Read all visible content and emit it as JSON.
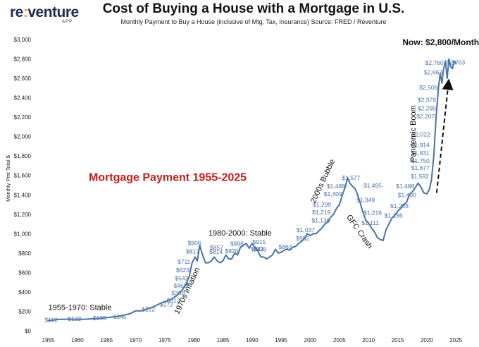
{
  "logo": {
    "main_a": "re",
    "main_accent": ":",
    "main_b": "venture",
    "sub": "APP"
  },
  "header": {
    "title": "Cost of Buying a House with a Mortgage in U.S.",
    "subtitle": "Monthly Payment to Buy a House (inclusive of Mtg, Tax, Insurance) Source: FRED / Reventure"
  },
  "chart_data": {
    "type": "line",
    "title": "Cost of Buying a House with a Mortgage in U.S.",
    "subtitle": "Monthly Payment to Buy a House (inclusive of Mtg, Tax, Insurance) Source: FRED / Reventure",
    "xlabel": "",
    "ylabel": "Monthly Pmt Total $",
    "xlim": [
      1953,
      2028
    ],
    "ylim": [
      0,
      3000
    ],
    "x_ticks": [
      "1955",
      "1960",
      "1965",
      "1970",
      "1975",
      "1980",
      "1985",
      "1990",
      "1995",
      "2000",
      "2005",
      "2010",
      "2015",
      "2020",
      "2025"
    ],
    "y_ticks": [
      "$0",
      "$200",
      "$400",
      "$600",
      "$800",
      "$1,000",
      "$1,200",
      "$1,400",
      "$1,600",
      "$1,800",
      "$2,000",
      "$2,200",
      "$2,400",
      "$2,600",
      "$2,800",
      "$3,000"
    ],
    "grid": false,
    "legend": "none",
    "line_color": "#4a72a8",
    "label_color": "#4a72a8",
    "series": [
      {
        "x": [
          1955,
          1957,
          1959,
          1961,
          1963,
          1965,
          1967,
          1969,
          1970,
          1971,
          1972,
          1973,
          1974,
          1975,
          1976,
          1977,
          1978,
          1978.6,
          1979.2,
          1979.7,
          1980.2,
          1980.6,
          1981,
          1981.5,
          1982,
          1982.5,
          1983,
          1983.5,
          1984,
          1984.5,
          1985,
          1985.5,
          1986,
          1986.5,
          1987,
          1987.5,
          1988,
          1988.5,
          1989,
          1989.5,
          1990,
          1990.5,
          1991,
          1991.5,
          1992,
          1992.5,
          1993,
          1993.5,
          1994,
          1994.5,
          1995,
          1995.5,
          1996,
          1996.5,
          1997,
          1997.5,
          1998,
          1998.5,
          1999,
          1999.5,
          2000,
          2000.5,
          2001,
          2001.5,
          2002,
          2002.5,
          2003,
          2003.5,
          2004,
          2004.5,
          2005,
          2005.5,
          2006,
          2006.4,
          2006.8,
          2007.2,
          2007.6,
          2008,
          2008.5,
          2009,
          2009.5,
          2010,
          2010.5,
          2011,
          2011.5,
          2012,
          2012.5,
          2013,
          2013.5,
          2014,
          2014.5,
          2015,
          2015.5,
          2016,
          2016.5,
          2017,
          2017.5,
          2018,
          2018.5,
          2019,
          2019.5,
          2020,
          2020.4,
          2020.8,
          2021.2,
          2021.6,
          2022,
          2022.3,
          2022.6,
          2022.9,
          2023.2,
          2023.5,
          2023.8,
          2024.1,
          2024.4,
          2024.7,
          2025
        ],
        "y": [
          105,
          118,
          120,
          118,
          125,
          135,
          148,
          175,
          205,
          205,
          225,
          245,
          275,
          300,
          320,
          360,
          420,
          470,
          560,
          700,
          760,
          720,
          880,
          780,
          700,
          700,
          720,
          760,
          720,
          700,
          720,
          780,
          740,
          740,
          800,
          780,
          860,
          880,
          900,
          850,
          900,
          860,
          820,
          760,
          760,
          740,
          760,
          780,
          840,
          800,
          810,
          830,
          840,
          830,
          860,
          870,
          900,
          920,
          950,
          1000,
          980,
          1000,
          1000,
          1030,
          1060,
          1100,
          1120,
          1170,
          1200,
          1260,
          1300,
          1400,
          1480,
          1577,
          1520,
          1490,
          1470,
          1420,
          1330,
          1230,
          1140,
          1110,
          1060,
          1020,
          960,
          940,
          930,
          1040,
          1100,
          1160,
          1190,
          1230,
          1260,
          1300,
          1320,
          1400,
          1430,
          1470,
          1520,
          1480,
          1420,
          1410,
          1450,
          1550,
          1800,
          2200,
          2500,
          2650,
          2550,
          2700,
          2780,
          2600,
          2800,
          2720,
          2700,
          2780,
          2750
        ]
      }
    ],
    "point_labels": [
      {
        "x": 1955.5,
        "y": 112,
        "text": "$112"
      },
      {
        "x": 1959.5,
        "y": 123,
        "text": "$123"
      },
      {
        "x": 1963.8,
        "y": 130,
        "text": "$130"
      },
      {
        "x": 1967.3,
        "y": 145,
        "text": "$145"
      },
      {
        "x": 1972.2,
        "y": 222,
        "text": "$222"
      },
      {
        "x": 1975.3,
        "y": 272,
        "text": "$272"
      },
      {
        "x": 1976.5,
        "y": 313,
        "text": "$313"
      },
      {
        "x": 1977.3,
        "y": 388,
        "text": "$388"
      },
      {
        "x": 1977.7,
        "y": 465,
        "text": "$465"
      },
      {
        "x": 1977.9,
        "y": 542,
        "text": "$542"
      },
      {
        "x": 1978.1,
        "y": 623,
        "text": "$623"
      },
      {
        "x": 1978.3,
        "y": 711,
        "text": "$711"
      },
      {
        "x": 1979.8,
        "y": 817,
        "text": "$817"
      },
      {
        "x": 1980.1,
        "y": 906,
        "text": "$906"
      },
      {
        "x": 1983.9,
        "y": 857,
        "text": "$857"
      },
      {
        "x": 1983.8,
        "y": 814,
        "text": "$814"
      },
      {
        "x": 1987.4,
        "y": 898,
        "text": "$898"
      },
      {
        "x": 1986.5,
        "y": 820,
        "text": "$820"
      },
      {
        "x": 1991.2,
        "y": 915,
        "text": "$915"
      },
      {
        "x": 1990.9,
        "y": 841,
        "text": "$841"
      },
      {
        "x": 1991.3,
        "y": 838,
        "text": "$838"
      },
      {
        "x": 1995.7,
        "y": 863,
        "text": "$863"
      },
      {
        "x": 1998.7,
        "y": 952,
        "text": "$952"
      },
      {
        "x": 1999.2,
        "y": 1037,
        "text": "$1,037"
      },
      {
        "x": 2001.8,
        "y": 1136,
        "text": "$1,136"
      },
      {
        "x": 2001.9,
        "y": 1219,
        "text": "$1,219"
      },
      {
        "x": 2002.0,
        "y": 1299,
        "text": "$1,299"
      },
      {
        "x": 2003.9,
        "y": 1409,
        "text": "$1,409"
      },
      {
        "x": 2004.4,
        "y": 1488,
        "text": "$1,488"
      },
      {
        "x": 2007.0,
        "y": 1577,
        "text": "$1,577"
      },
      {
        "x": 2010.7,
        "y": 1495,
        "text": "$1,495"
      },
      {
        "x": 2009.5,
        "y": 1349,
        "text": "$1,349"
      },
      {
        "x": 2010.7,
        "y": 1216,
        "text": "$1,216"
      },
      {
        "x": 2010.3,
        "y": 1111,
        "text": "$1,111"
      },
      {
        "x": 2014.3,
        "y": 1186,
        "text": "$1,186"
      },
      {
        "x": 2015.3,
        "y": 1286,
        "text": "$1,286"
      },
      {
        "x": 2016.6,
        "y": 1400,
        "text": "$1,400"
      },
      {
        "x": 2016.3,
        "y": 1488,
        "text": "$1,488"
      },
      {
        "x": 2018.8,
        "y": 1592,
        "text": "$1,592"
      },
      {
        "x": 2018.9,
        "y": 1677,
        "text": "$1,677"
      },
      {
        "x": 2018.9,
        "y": 1750,
        "text": "$1,750"
      },
      {
        "x": 2018.9,
        "y": 1831,
        "text": "$1,831"
      },
      {
        "x": 2018.9,
        "y": 1914,
        "text": "$1,914"
      },
      {
        "x": 2019.0,
        "y": 2022,
        "text": "$2,022"
      },
      {
        "x": 2019.8,
        "y": 2207,
        "text": "$2,207"
      },
      {
        "x": 2020.0,
        "y": 2290,
        "text": "$2,290"
      },
      {
        "x": 2020.0,
        "y": 2379,
        "text": "$2,379"
      },
      {
        "x": 2020.3,
        "y": 2506,
        "text": "$2,506"
      },
      {
        "x": 2021.1,
        "y": 2663,
        "text": "$2,663"
      },
      {
        "x": 2021.3,
        "y": 2760,
        "text": "$2,760"
      },
      {
        "x": 2025.0,
        "y": 2763,
        "text": "$2,763"
      }
    ],
    "annotations": [
      {
        "text": "1955-1970: Stable",
        "x": 1955,
        "y": 235,
        "rotate": 0,
        "size": 11,
        "color": "#111",
        "bold": false,
        "anchor": "start"
      },
      {
        "text": "1970s Inflation",
        "x": 1978.9,
        "y": 410,
        "rotate": -65,
        "size": 11,
        "color": "#111",
        "bold": false,
        "anchor": "middle"
      },
      {
        "text": "1980-2000: Stable",
        "x": 1982.5,
        "y": 1000,
        "rotate": 0,
        "size": 11,
        "color": "#111",
        "bold": false,
        "anchor": "start"
      },
      {
        "text": "2000s Bubble",
        "x": 2002.2,
        "y": 1540,
        "rotate": -65,
        "size": 11,
        "color": "#111",
        "bold": false,
        "anchor": "middle"
      },
      {
        "text": "GFC Crash",
        "x": 2008.4,
        "y": 1020,
        "rotate": 55,
        "size": 11,
        "color": "#111",
        "bold": false,
        "anchor": "middle"
      },
      {
        "text": "Pandemic Boom",
        "x": 2017.7,
        "y": 2030,
        "rotate": -90,
        "size": 11,
        "color": "#111",
        "bold": false,
        "anchor": "middle"
      },
      {
        "text": "Now: $2,800/Month",
        "x": 2022.4,
        "y": 2965,
        "rotate": 0,
        "size": 12,
        "color": "#111",
        "bold": true,
        "anchor": "middle"
      },
      {
        "text": "Mortgage Payment 1955-2025",
        "x": 1975.5,
        "y": 1575,
        "rotate": 0,
        "size": 16,
        "color": "#c41e1e",
        "bold": true,
        "anchor": "middle"
      }
    ],
    "arrow": {
      "from": {
        "x": 2021.7,
        "y": 1420
      },
      "to": {
        "x": 2023.7,
        "y": 2540
      },
      "style": "dashed",
      "color": "#111"
    }
  }
}
